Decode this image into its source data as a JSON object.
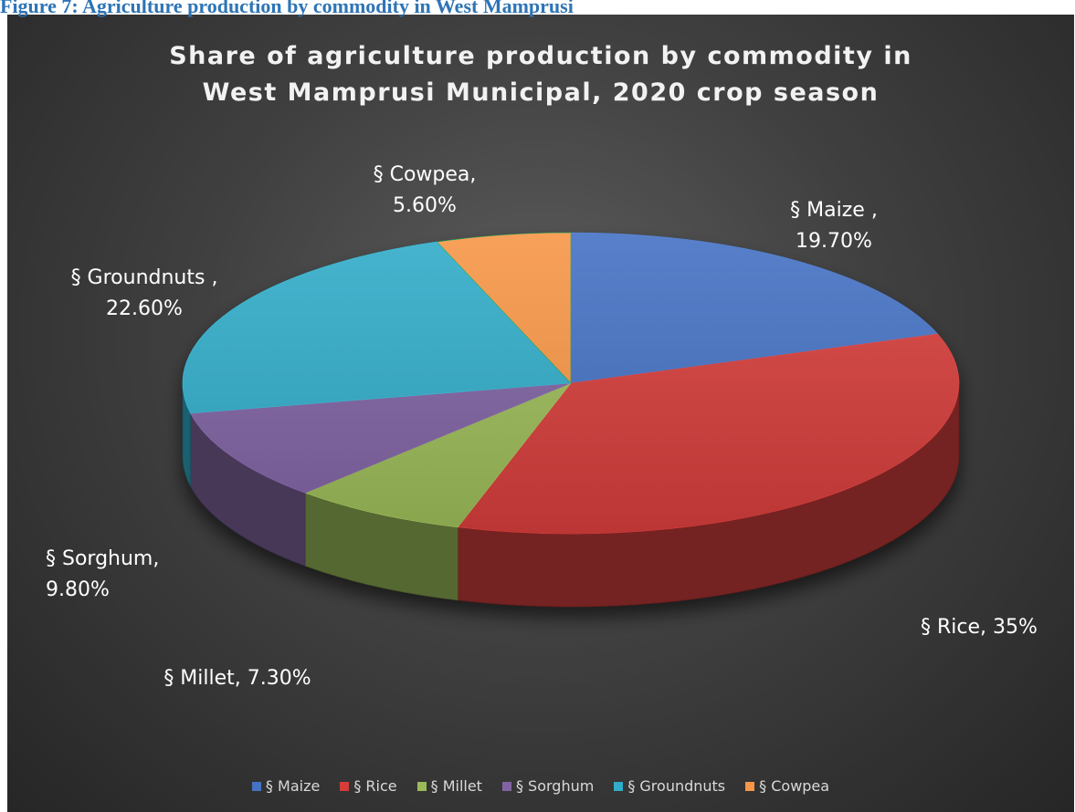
{
  "caption": "Figure 7: Agriculture production by commodity in West Mamprusi",
  "chart_data": {
    "type": "pie",
    "title": [
      "Share of agriculture production by commodity in",
      "West Mamprusi Municipal, 2020 crop season"
    ],
    "legend_position": "bottom",
    "three_d": true,
    "slices": [
      {
        "name": "§ Maize",
        "value": 19.7,
        "label": [
          "§ Maize ,",
          "19.70%"
        ],
        "color": "#4472C4"
      },
      {
        "name": "§ Rice",
        "value": 35,
        "label": [
          "§ Rice, 35%"
        ],
        "color": "#D43D3A"
      },
      {
        "name": "§ Millet",
        "value": 7.3,
        "label": [
          "§ Millet, 7.30%"
        ],
        "color": "#9BBB59"
      },
      {
        "name": "§ Sorghum",
        "value": 9.8,
        "label": [
          "§ Sorghum,",
          "9.80%"
        ],
        "color": "#8064A2"
      },
      {
        "name": "§ Groundnuts",
        "value": 22.6,
        "label": [
          "§ Groundnuts ,",
          "22.60%"
        ],
        "color": "#31ACC9"
      },
      {
        "name": "§ Cowpea",
        "value": 5.6,
        "label": [
          "§ Cowpea,",
          "5.60%"
        ],
        "color": "#F79646"
      }
    ]
  }
}
